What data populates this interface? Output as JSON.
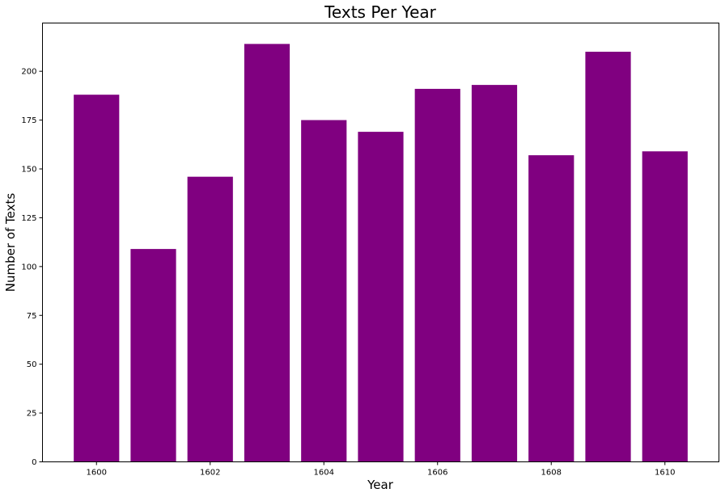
{
  "chart_data": {
    "type": "bar",
    "title": "Texts Per Year",
    "xlabel": "Year",
    "ylabel": "Number of Texts",
    "bar_color": "#800080",
    "categories": [
      1600,
      1601,
      1602,
      1603,
      1604,
      1605,
      1606,
      1607,
      1608,
      1609,
      1610
    ],
    "values": [
      188,
      109,
      146,
      214,
      175,
      169,
      191,
      193,
      157,
      210,
      159
    ],
    "xlim": [
      1599.05,
      1610.95
    ],
    "ylim": [
      0,
      224.7
    ],
    "x_ticks": [
      1600,
      1602,
      1604,
      1606,
      1608,
      1610
    ],
    "y_ticks": [
      0,
      25,
      50,
      75,
      100,
      125,
      150,
      175,
      200
    ],
    "grid": false,
    "legend": "none"
  }
}
